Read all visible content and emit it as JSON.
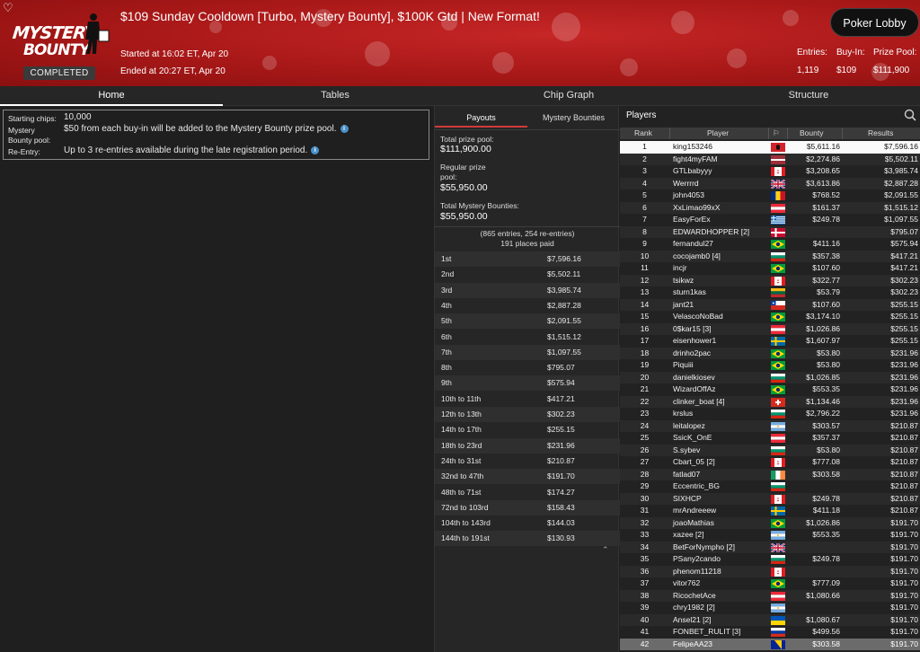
{
  "header": {
    "title": "$109 Sunday Cooldown [Turbo, Mystery Bounty], $100K Gtd | New Format!",
    "logo_line1": "MYSTERY",
    "logo_line2": "BOUNTY",
    "status": "COMPLETED",
    "started": "Started at 16:02 ET, Apr 20",
    "ended": "Ended at 20:27 ET, Apr 20",
    "lobby_button": "Poker Lobby",
    "entries_label": "Entries:",
    "entries_value": "1,119",
    "buyin_label": "Buy-In:",
    "buyin_value": "$109",
    "prizepool_label": "Prize Pool:",
    "prizepool_value": "$111,900",
    "accent": "#b51c1c"
  },
  "nav": {
    "tabs": [
      "Home",
      "Tables",
      "Chip Graph",
      "Structure"
    ],
    "active": "Home"
  },
  "info": {
    "starting_chips_label": "Starting chips:",
    "starting_chips_value": "10,000",
    "mystery_label_1": "Mystery",
    "mystery_label_2": "Bounty pool:",
    "mystery_value": "$50 from each buy-in will be added to the Mystery Bounty prize pool.",
    "reentry_label": "Re-Entry:",
    "reentry_value": "Up to 3 re-entries available during the late registration period."
  },
  "payouts_panel": {
    "tabs": [
      "Payouts",
      "Mystery Bounties"
    ],
    "total_label": "Total prize pool:",
    "total_value": "$111,900.00",
    "regular_label_1": "Regular prize",
    "regular_label_2": "pool:",
    "regular_value": "$55,950.00",
    "mystery_label": "Total Mystery Bounties:",
    "mystery_value": "$55,950.00",
    "entries_note": "(865 entries, 254 re-entries)",
    "places_note": "191 places paid",
    "rows": [
      {
        "place": "1st",
        "amount": "$7,596.16"
      },
      {
        "place": "2nd",
        "amount": "$5,502.11"
      },
      {
        "place": "3rd",
        "amount": "$3,985.74"
      },
      {
        "place": "4th",
        "amount": "$2,887.28"
      },
      {
        "place": "5th",
        "amount": "$2,091.55"
      },
      {
        "place": "6th",
        "amount": "$1,515.12"
      },
      {
        "place": "7th",
        "amount": "$1,097.55"
      },
      {
        "place": "8th",
        "amount": "$795.07"
      },
      {
        "place": "9th",
        "amount": "$575.94"
      },
      {
        "place": "10th to 11th",
        "amount": "$417.21"
      },
      {
        "place": "12th to 13th",
        "amount": "$302.23"
      },
      {
        "place": "14th to 17th",
        "amount": "$255.15"
      },
      {
        "place": "18th to 23rd",
        "amount": "$231.96"
      },
      {
        "place": "24th to 31st",
        "amount": "$210.87"
      },
      {
        "place": "32nd to 47th",
        "amount": "$191.70"
      },
      {
        "place": "48th to 71st",
        "amount": "$174.27"
      },
      {
        "place": "72nd to 103rd",
        "amount": "$158.43"
      },
      {
        "place": "104th to 143rd",
        "amount": "$144.03"
      },
      {
        "place": "144th to 191st",
        "amount": "$130.93"
      }
    ]
  },
  "players_panel": {
    "title": "Players",
    "columns": [
      "Rank",
      "Player",
      "Bounty",
      "Results"
    ],
    "rows": [
      {
        "rank": "1",
        "name": "king153246",
        "flag": "albania",
        "bounty": "$5,611.16",
        "result": "$7,596.16"
      },
      {
        "rank": "2",
        "name": "fight4myFAM",
        "flag": "latvia",
        "bounty": "$2,274.86",
        "result": "$5,502.11"
      },
      {
        "rank": "3",
        "name": "GTLbabyyy",
        "flag": "canada",
        "bounty": "$3,208.65",
        "result": "$3,985.74"
      },
      {
        "rank": "4",
        "name": "Werrrrd",
        "flag": "uk",
        "bounty": "$3,613.86",
        "result": "$2,887.28"
      },
      {
        "rank": "5",
        "name": "john4053",
        "flag": "romania",
        "bounty": "$768.52",
        "result": "$2,091.55"
      },
      {
        "rank": "6",
        "name": "XxLimao99xX",
        "flag": "austria",
        "bounty": "$161.37",
        "result": "$1,515.12"
      },
      {
        "rank": "7",
        "name": "EasyForEx",
        "flag": "greece",
        "bounty": "$249.78",
        "result": "$1,097.55"
      },
      {
        "rank": "8",
        "name": "EDWARDHOPPER [2]",
        "flag": "denmark",
        "bounty": "",
        "result": "$795.07"
      },
      {
        "rank": "9",
        "name": "fernandul27",
        "flag": "brazil",
        "bounty": "$411.16",
        "result": "$575.94"
      },
      {
        "rank": "10",
        "name": "cocojamb0 [4]",
        "flag": "bulgaria",
        "bounty": "$357.38",
        "result": "$417.21"
      },
      {
        "rank": "11",
        "name": "incjr",
        "flag": "brazil",
        "bounty": "$107.60",
        "result": "$417.21"
      },
      {
        "rank": "12",
        "name": "tsikwz",
        "flag": "canada",
        "bounty": "$322.77",
        "result": "$302.23"
      },
      {
        "rank": "13",
        "name": "sturn1kas",
        "flag": "lithuania",
        "bounty": "$53.79",
        "result": "$302.23"
      },
      {
        "rank": "14",
        "name": "jant21",
        "flag": "chile",
        "bounty": "$107.60",
        "result": "$255.15"
      },
      {
        "rank": "15",
        "name": "VelascoNoBad",
        "flag": "brazil",
        "bounty": "$3,174.10",
        "result": "$255.15"
      },
      {
        "rank": "16",
        "name": "0$kar15 [3]",
        "flag": "austria",
        "bounty": "$1,026.86",
        "result": "$255.15"
      },
      {
        "rank": "17",
        "name": "eisenhower1",
        "flag": "sweden",
        "bounty": "$1,607.97",
        "result": "$255.15"
      },
      {
        "rank": "18",
        "name": "drinho2pac",
        "flag": "brazil",
        "bounty": "$53.80",
        "result": "$231.96"
      },
      {
        "rank": "19",
        "name": "Piquiii",
        "flag": "brazil",
        "bounty": "$53.80",
        "result": "$231.96"
      },
      {
        "rank": "20",
        "name": "danielkiosev",
        "flag": "bulgaria",
        "bounty": "$1,026.85",
        "result": "$231.96"
      },
      {
        "rank": "21",
        "name": "WizardOffAz",
        "flag": "brazil",
        "bounty": "$553.35",
        "result": "$231.96"
      },
      {
        "rank": "22",
        "name": "clinker_boat [4]",
        "flag": "switzerland",
        "bounty": "$1,134.46",
        "result": "$231.96"
      },
      {
        "rank": "23",
        "name": "krslus",
        "flag": "bulgaria",
        "bounty": "$2,796.22",
        "result": "$231.96"
      },
      {
        "rank": "24",
        "name": "leitalopez",
        "flag": "argentina",
        "bounty": "$303.57",
        "result": "$210.87"
      },
      {
        "rank": "25",
        "name": "SsicK_OnE",
        "flag": "austria",
        "bounty": "$357.37",
        "result": "$210.87"
      },
      {
        "rank": "26",
        "name": "S.sybev",
        "flag": "bulgaria",
        "bounty": "$53.80",
        "result": "$210.87"
      },
      {
        "rank": "27",
        "name": "Cbart_05 [2]",
        "flag": "canada",
        "bounty": "$777.08",
        "result": "$210.87"
      },
      {
        "rank": "28",
        "name": "fatlad07",
        "flag": "ireland",
        "bounty": "$303.58",
        "result": "$210.87"
      },
      {
        "rank": "29",
        "name": "Eccentric_BG",
        "flag": "bulgaria",
        "bounty": "",
        "result": "$210.87"
      },
      {
        "rank": "30",
        "name": "SIXHCP",
        "flag": "canada",
        "bounty": "$249.78",
        "result": "$210.87"
      },
      {
        "rank": "31",
        "name": "mrAndreeew",
        "flag": "sweden",
        "bounty": "$411.18",
        "result": "$210.87"
      },
      {
        "rank": "32",
        "name": "joaoMathias",
        "flag": "brazil",
        "bounty": "$1,026.86",
        "result": "$191.70"
      },
      {
        "rank": "33",
        "name": "xazee [2]",
        "flag": "argentina",
        "bounty": "$553.35",
        "result": "$191.70"
      },
      {
        "rank": "34",
        "name": "BetForNympho [2]",
        "flag": "uk",
        "bounty": "",
        "result": "$191.70"
      },
      {
        "rank": "35",
        "name": "PSany2cando",
        "flag": "bulgaria",
        "bounty": "$249.78",
        "result": "$191.70"
      },
      {
        "rank": "36",
        "name": "phenom11218",
        "flag": "canada",
        "bounty": "",
        "result": "$191.70"
      },
      {
        "rank": "37",
        "name": "vitor762",
        "flag": "brazil",
        "bounty": "$777.09",
        "result": "$191.70"
      },
      {
        "rank": "38",
        "name": "RicochetAce",
        "flag": "austria",
        "bounty": "$1,080.66",
        "result": "$191.70"
      },
      {
        "rank": "39",
        "name": "chry1982 [2]",
        "flag": "argentina",
        "bounty": "",
        "result": "$191.70"
      },
      {
        "rank": "40",
        "name": "Ansel21 [2]",
        "flag": "ukraine",
        "bounty": "$1,080.67",
        "result": "$191.70"
      },
      {
        "rank": "41",
        "name": "FONBET_RULIT [3]",
        "flag": "russia",
        "bounty": "$499.56",
        "result": "$191.70"
      },
      {
        "rank": "42",
        "name": "FelipeAA23",
        "flag": "bosnia",
        "bounty": "$303.58",
        "result": "$191.70"
      }
    ]
  }
}
